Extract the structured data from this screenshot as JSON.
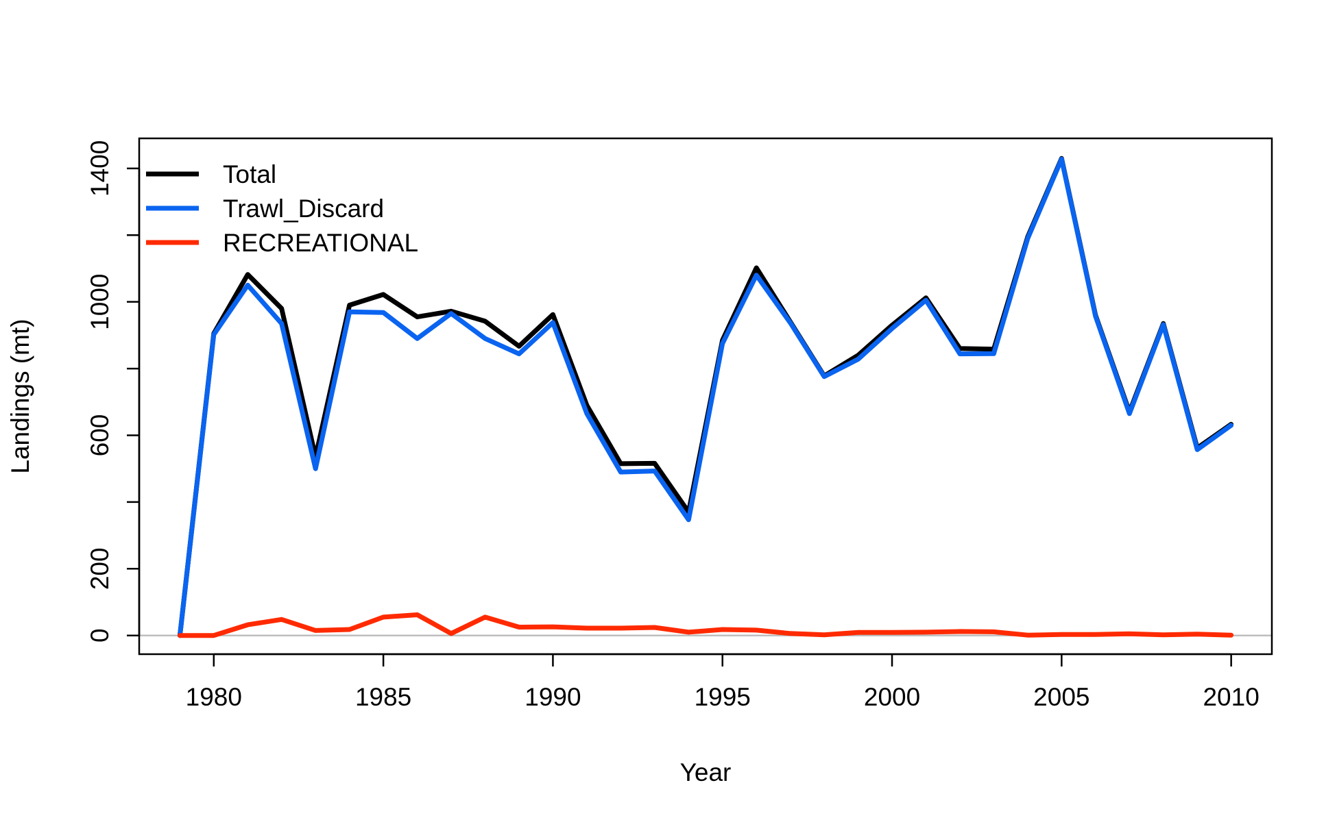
{
  "chart_data": {
    "type": "line",
    "title": "",
    "xlabel": "Year",
    "ylabel": "Landings (mt)",
    "xlim": [
      1977.8,
      2011.2
    ],
    "ylim": [
      -56,
      1490
    ],
    "x_ticks": [
      1980,
      1985,
      1990,
      1995,
      2000,
      2005,
      2010
    ],
    "y_ticks": [
      0,
      200,
      400,
      600,
      800,
      1000,
      1200,
      1400
    ],
    "y_tick_labels": [
      "0",
      "200",
      "",
      "600",
      "",
      "1000",
      "",
      "1400"
    ],
    "reference_line": {
      "y": 0,
      "color": "#bebebe"
    },
    "grid": false,
    "legend_position": "top-left",
    "x": [
      1979,
      1980,
      1981,
      1982,
      1983,
      1984,
      1985,
      1986,
      1987,
      1988,
      1989,
      1990,
      1991,
      1992,
      1993,
      1994,
      1995,
      1996,
      1997,
      1998,
      1999,
      2000,
      2001,
      2002,
      2003,
      2004,
      2005,
      2006,
      2007,
      2008,
      2009,
      2010
    ],
    "series": [
      {
        "name": "Total",
        "color": "#000000",
        "values": [
          0,
          905,
          1082,
          980,
          535,
          990,
          1022,
          955,
          972,
          942,
          867,
          962,
          690,
          515,
          516,
          370,
          885,
          1102,
          940,
          778,
          840,
          930,
          1012,
          860,
          858,
          1195,
          1430,
          960,
          670,
          935,
          562,
          633
        ]
      },
      {
        "name": "Trawl_Discard",
        "color": "#0a64f0",
        "values": [
          0,
          902,
          1050,
          935,
          500,
          970,
          968,
          890,
          965,
          890,
          844,
          938,
          665,
          490,
          493,
          347,
          875,
          1080,
          937,
          776,
          828,
          920,
          1005,
          844,
          845,
          1190,
          1428,
          957,
          665,
          932,
          557,
          630
        ]
      },
      {
        "name": "RECREATIONAL",
        "color": "#ff2a00",
        "values": [
          0,
          0,
          32,
          48,
          15,
          18,
          55,
          62,
          6,
          55,
          25,
          26,
          22,
          22,
          24,
          10,
          18,
          16,
          6,
          2,
          9,
          9,
          10,
          12,
          11,
          1,
          3,
          3,
          5,
          2,
          4,
          1
        ]
      }
    ]
  }
}
